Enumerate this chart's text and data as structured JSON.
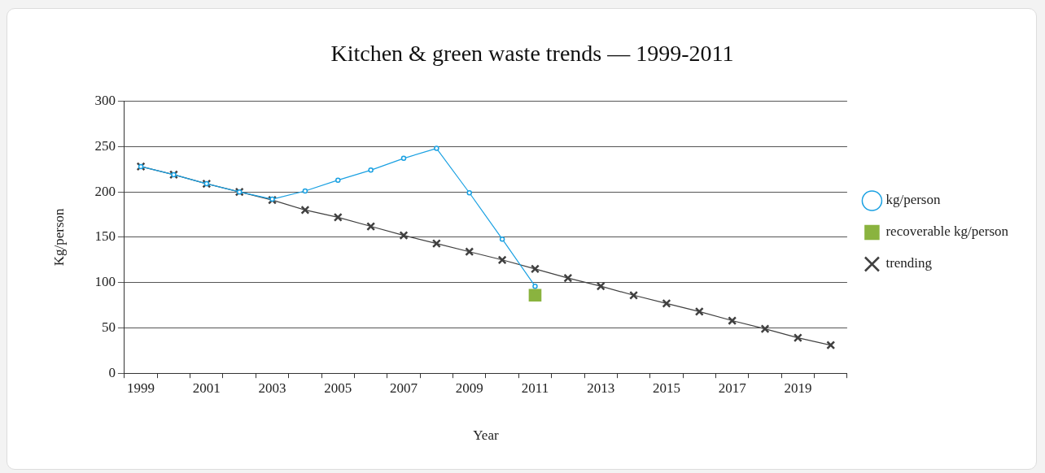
{
  "chart_data": {
    "type": "line",
    "title": "Kitchen & green waste trends — 1999-2011",
    "xlabel": "Year",
    "ylabel": "Kg/person",
    "categories": [
      "1999",
      null,
      "2001",
      null,
      "2003",
      null,
      "2005",
      null,
      "2007",
      null,
      "2009",
      null,
      "2011",
      null,
      "2013",
      null,
      "2015",
      null,
      "2017",
      null,
      "2019",
      null
    ],
    "series": [
      {
        "name": "kg/person",
        "color": "#1ba1e2",
        "marker": "circle",
        "values": [
          228,
          219,
          209,
          200,
          192,
          201,
          213,
          224,
          237,
          248,
          199,
          148,
          96,
          null,
          null,
          null,
          null,
          null,
          null,
          null,
          null,
          null
        ]
      },
      {
        "name": "recoverable kg/person",
        "color": "#8ab33f",
        "marker": "square",
        "values": [
          null,
          null,
          null,
          null,
          null,
          null,
          null,
          null,
          null,
          null,
          null,
          null,
          86,
          null,
          null,
          null,
          null,
          null,
          null,
          null,
          null,
          null
        ]
      },
      {
        "name": "trending",
        "color": "#404040",
        "marker": "cross",
        "values": [
          228,
          219,
          209,
          200,
          191,
          180,
          172,
          162,
          152,
          143,
          134,
          125,
          115,
          105,
          96,
          86,
          77,
          68,
          58,
          49,
          39,
          31
        ]
      }
    ],
    "ylim": [
      0,
      300
    ],
    "yticks": [
      0,
      50,
      100,
      150,
      200,
      250,
      300
    ],
    "grid": "y",
    "legend": "right",
    "line_style": "solid"
  }
}
